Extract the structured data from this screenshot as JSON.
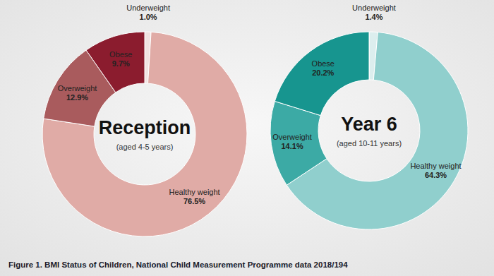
{
  "chart_data": [
    {
      "type": "donut",
      "title": "Reception",
      "subtitle": "(aged 4-5 years)",
      "categories": [
        "Underweight",
        "Healthy weight",
        "Overweight",
        "Obese"
      ],
      "values": [
        1.0,
        76.5,
        12.9,
        9.7
      ],
      "value_labels": [
        "1.0%",
        "76.5%",
        "12.9%",
        "9.7%"
      ],
      "colors": [
        "#f1e3e2",
        "#e0aba6",
        "#a95b5d",
        "#8b1c2e"
      ],
      "data_labels": true
    },
    {
      "type": "donut",
      "title": "Year 6",
      "subtitle": "(aged 10-11 years)",
      "categories": [
        "Underweight",
        "Healthy weight",
        "Overweight",
        "Obese"
      ],
      "values": [
        1.4,
        64.3,
        14.1,
        20.2
      ],
      "value_labels": [
        "1.4%",
        "64.3%",
        "14.1%",
        "20.2%"
      ],
      "colors": [
        "#dceeee",
        "#90cfcd",
        "#3caaa5",
        "#17958f"
      ],
      "data_labels": true
    }
  ],
  "caption": "Figure 1. BMI Status of Children, National Child Measurement Programme data 2018/194"
}
